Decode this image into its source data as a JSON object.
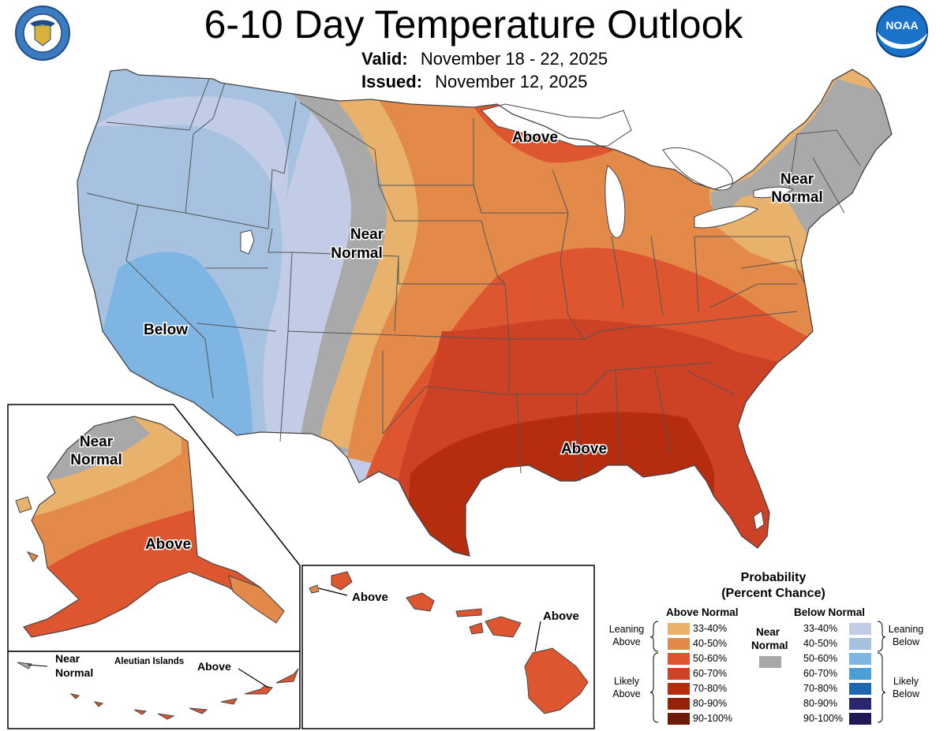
{
  "header": {
    "title": "6-10 Day Temperature Outlook",
    "valid_label": "Valid:",
    "valid_value": "November 18 - 22, 2025",
    "issued_label": "Issued:",
    "issued_value": "November 12, 2025",
    "left_logo": "department-of-commerce-seal",
    "right_logo": "noaa-logo",
    "right_logo_text": "NOAA"
  },
  "map": {
    "labels": {
      "above_north": "Above",
      "near_normal_northeast_1": "Near",
      "near_normal_northeast_2": "Normal",
      "near_normal_central_1": "Near",
      "near_normal_central_2": "Normal",
      "below": "Below",
      "above_south": "Above"
    }
  },
  "insets": {
    "alaska": {
      "near_1": "Near",
      "near_2": "Normal",
      "above": "Above"
    },
    "aleutians": {
      "near_1": "Near",
      "near_2": "Normal",
      "title": "Aleutian Islands",
      "above": "Above"
    },
    "hawaii": {
      "above_west": "Above",
      "above_east": "Above"
    }
  },
  "legend": {
    "title_1": "Probability",
    "title_2": "(Percent Chance)",
    "above_header": "Above Normal",
    "below_header": "Below Normal",
    "near_1": "Near",
    "near_2": "Normal",
    "leaning_above_1": "Leaning",
    "leaning_above_2": "Above",
    "likely_above_1": "Likely",
    "likely_above_2": "Above",
    "leaning_below_1": "Leaning",
    "leaning_below_2": "Below",
    "likely_below_1": "Likely",
    "likely_below_2": "Below",
    "above_ranges": [
      "33-40%",
      "40-50%",
      "50-60%",
      "60-70%",
      "70-80%",
      "80-90%",
      "90-100%"
    ],
    "below_ranges": [
      "33-40%",
      "40-50%",
      "50-60%",
      "60-70%",
      "70-80%",
      "80-90%",
      "90-100%"
    ],
    "above_colors": [
      "#e8b26c",
      "#e3894a",
      "#dd5630",
      "#cd4124",
      "#b52d0e",
      "#952108",
      "#6e1a06"
    ],
    "below_colors": [
      "#c2cce6",
      "#a6c2e0",
      "#7fb5e2",
      "#4a9fd8",
      "#1f67b0",
      "#2a2670",
      "#1f1a55"
    ],
    "near_color": "#a9a9a9"
  }
}
